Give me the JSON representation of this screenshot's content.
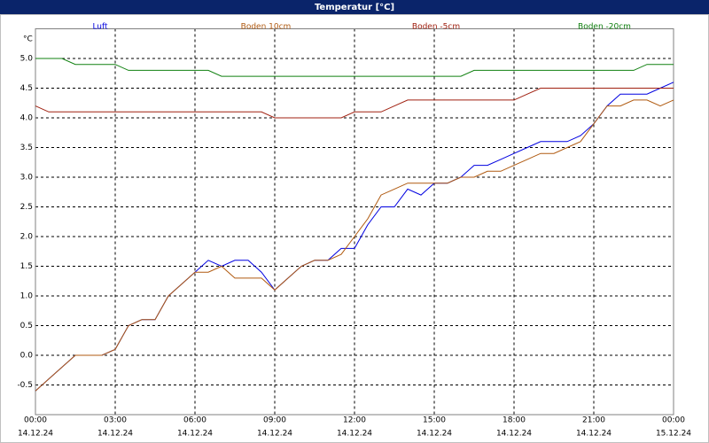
{
  "chart_data": {
    "type": "line",
    "title": "Temperatur [°C]",
    "y_label": "°C",
    "x": [
      0,
      0.5,
      1,
      1.5,
      2,
      2.5,
      3,
      3.5,
      4,
      4.5,
      5,
      5.5,
      6,
      6.5,
      7,
      7.5,
      8,
      8.5,
      9,
      9.5,
      10,
      10.5,
      11,
      11.5,
      12,
      12.5,
      13,
      13.5,
      14,
      14.5,
      15,
      15.5,
      16,
      16.5,
      17,
      17.5,
      18,
      18.5,
      19,
      19.5,
      20,
      20.5,
      21,
      21.5,
      22,
      22.5,
      23,
      23.5,
      24
    ],
    "series": [
      {
        "name": "Luft",
        "color": "#0000e0",
        "values": [
          -0.6,
          -0.4,
          -0.2,
          0.0,
          0.0,
          0.0,
          0.1,
          0.5,
          0.6,
          0.6,
          1.0,
          1.2,
          1.4,
          1.6,
          1.5,
          1.6,
          1.6,
          1.4,
          1.1,
          1.3,
          1.5,
          1.6,
          1.6,
          1.8,
          1.8,
          2.2,
          2.5,
          2.5,
          2.8,
          2.7,
          2.9,
          2.9,
          3.0,
          3.2,
          3.2,
          3.3,
          3.4,
          3.5,
          3.6,
          3.6,
          3.6,
          3.7,
          3.9,
          4.2,
          4.4,
          4.4,
          4.4,
          4.5,
          4.6
        ]
      },
      {
        "name": "Boden 10cm",
        "color": "#b05a10",
        "values": [
          -0.6,
          -0.4,
          -0.2,
          0.0,
          0.0,
          0.0,
          0.1,
          0.5,
          0.6,
          0.6,
          1.0,
          1.2,
          1.4,
          1.4,
          1.5,
          1.3,
          1.3,
          1.3,
          1.1,
          1.3,
          1.5,
          1.6,
          1.6,
          1.7,
          2.0,
          2.3,
          2.7,
          2.8,
          2.9,
          2.9,
          2.9,
          2.9,
          3.0,
          3.0,
          3.1,
          3.1,
          3.2,
          3.3,
          3.4,
          3.4,
          3.5,
          3.6,
          3.9,
          4.2,
          4.2,
          4.3,
          4.3,
          4.2,
          4.3
        ]
      },
      {
        "name": "Boden -5cm",
        "color": "#a02010",
        "values": [
          4.2,
          4.1,
          4.1,
          4.1,
          4.1,
          4.1,
          4.1,
          4.1,
          4.1,
          4.1,
          4.1,
          4.1,
          4.1,
          4.1,
          4.1,
          4.1,
          4.1,
          4.1,
          4.0,
          4.0,
          4.0,
          4.0,
          4.0,
          4.0,
          4.1,
          4.1,
          4.1,
          4.2,
          4.3,
          4.3,
          4.3,
          4.3,
          4.3,
          4.3,
          4.3,
          4.3,
          4.3,
          4.4,
          4.5,
          4.5,
          4.5,
          4.5,
          4.5,
          4.5,
          4.5,
          4.5,
          4.5,
          4.5,
          4.5
        ]
      },
      {
        "name": "Boden -20cm",
        "color": "#108010",
        "values": [
          5.0,
          5.0,
          5.0,
          4.9,
          4.9,
          4.9,
          4.9,
          4.8,
          4.8,
          4.8,
          4.8,
          4.8,
          4.8,
          4.8,
          4.7,
          4.7,
          4.7,
          4.7,
          4.7,
          4.7,
          4.7,
          4.7,
          4.7,
          4.7,
          4.7,
          4.7,
          4.7,
          4.7,
          4.7,
          4.7,
          4.7,
          4.7,
          4.7,
          4.8,
          4.8,
          4.8,
          4.8,
          4.8,
          4.8,
          4.8,
          4.8,
          4.8,
          4.8,
          4.8,
          4.8,
          4.8,
          4.9,
          4.9,
          4.9
        ]
      }
    ],
    "xlim": [
      0,
      24
    ],
    "xticks": [
      {
        "value": 0,
        "label": "00:00",
        "date": "14.12.24"
      },
      {
        "value": 3,
        "label": "03:00",
        "date": "14.12.24"
      },
      {
        "value": 6,
        "label": "06:00",
        "date": "14.12.24"
      },
      {
        "value": 9,
        "label": "09:00",
        "date": "14.12.24"
      },
      {
        "value": 12,
        "label": "12:00",
        "date": "14.12.24"
      },
      {
        "value": 15,
        "label": "15:00",
        "date": "14.12.24"
      },
      {
        "value": 18,
        "label": "18:00",
        "date": "14.12.24"
      },
      {
        "value": 21,
        "label": "21:00",
        "date": "14.12.24"
      },
      {
        "value": 24,
        "label": "00:00",
        "date": "15.12.24"
      }
    ],
    "ylim": [
      -1,
      5.5
    ],
    "yticks": [
      -0.5,
      {
        "value": 0,
        "label": "0.0"
      },
      0.5,
      {
        "value": 1,
        "label": "1.0"
      },
      1.5,
      {
        "value": 2,
        "label": "2.0"
      },
      2.5,
      {
        "value": 3,
        "label": "3.0"
      },
      3.5,
      {
        "value": 4,
        "label": "4.0"
      },
      4.5,
      {
        "value": 5,
        "label": "5.0"
      }
    ],
    "grid": true
  }
}
